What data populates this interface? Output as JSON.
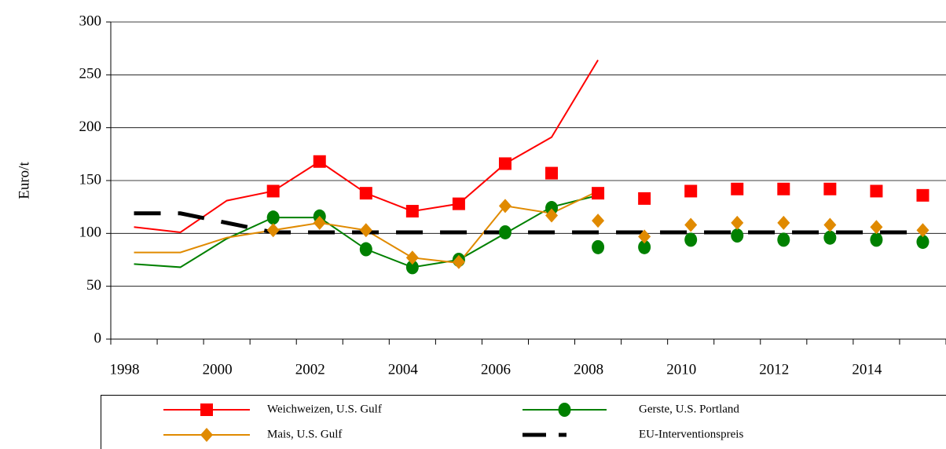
{
  "chart_data": {
    "type": "line",
    "y_label": "Euro/t",
    "categories": [
      "1998",
      null,
      "2000",
      null,
      "2002",
      null,
      "2004",
      null,
      "2006",
      null,
      "2008",
      null,
      "2010",
      null,
      "2012",
      null,
      "2014",
      null
    ],
    "ylim": [
      0,
      300
    ],
    "yticks": [
      0,
      50,
      100,
      150,
      200,
      250,
      300
    ],
    "grid": true,
    "series": [
      {
        "name": "Weichweizen, U.S. Gulf",
        "color": "#ff0000",
        "marker": "square",
        "dash": "solid",
        "values": [
          106,
          101,
          131,
          140,
          168,
          138,
          121,
          128,
          166,
          191,
          264,
          null,
          null,
          null,
          null,
          null,
          null,
          null
        ],
        "markers": [
          null,
          null,
          null,
          140,
          168,
          138,
          121,
          128,
          166,
          157,
          138,
          133,
          140,
          142,
          142,
          142,
          140,
          136
        ]
      },
      {
        "name": "Gerste, U.S. Portland",
        "color": "#008000",
        "marker": "circle",
        "dash": "solid",
        "values": [
          71,
          68,
          95,
          115,
          115,
          85,
          68,
          75,
          100,
          125,
          136,
          null,
          null,
          null,
          null,
          null,
          null,
          null
        ],
        "markers": [
          null,
          null,
          null,
          115,
          116,
          85,
          68,
          75,
          101,
          124,
          87,
          87,
          94,
          98,
          94,
          96,
          94,
          92
        ]
      },
      {
        "name": "Mais, U.S. Gulf",
        "color": "#e08a00",
        "marker": "diamond",
        "dash": "solid",
        "values": [
          82,
          82,
          96,
          103,
          110,
          103,
          77,
          72,
          126,
          119,
          140,
          null,
          null,
          null,
          null,
          null,
          null,
          null
        ],
        "markers": [
          null,
          null,
          null,
          103,
          110,
          103,
          77,
          73,
          126,
          117,
          112,
          97,
          108,
          110,
          110,
          108,
          106,
          103
        ]
      },
      {
        "name": "EU-Interventionspreis",
        "color": "#000000",
        "marker": "none",
        "dash": "dash",
        "values": [
          119,
          119,
          110,
          101,
          101,
          101,
          101,
          101,
          101,
          101,
          101,
          101,
          101,
          101,
          101,
          101,
          101,
          101
        ]
      }
    ]
  }
}
